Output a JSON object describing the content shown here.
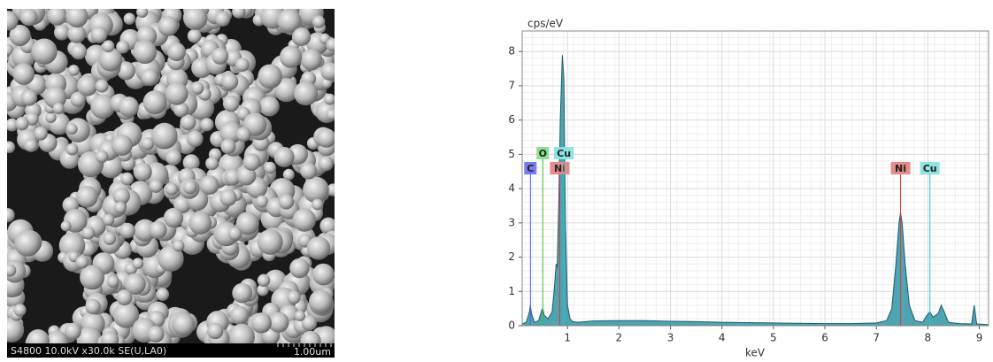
{
  "sem_image": {
    "caption": "S4800 10.0kV x30.0k SE(U,LA0)",
    "scale_bar": "1.00um"
  },
  "chart_data": {
    "type": "area",
    "y_label": "cps/eV",
    "x_label": "keV",
    "xlim": [
      0.12,
      9.18
    ],
    "ylim": [
      0,
      8.6
    ],
    "xticks": [
      1,
      2,
      3,
      4,
      5,
      6,
      7,
      8,
      9
    ],
    "yticks": [
      0,
      1,
      2,
      3,
      4,
      5,
      6,
      7,
      8
    ],
    "grid": true,
    "color": "#3b9aa9",
    "line_color": "#1f5f6e",
    "x": [
      0.12,
      0.2,
      0.26,
      0.28,
      0.3,
      0.36,
      0.44,
      0.5,
      0.52,
      0.55,
      0.62,
      0.7,
      0.74,
      0.78,
      0.8,
      0.83,
      0.86,
      0.9,
      0.93,
      0.96,
      1.0,
      1.05,
      1.1,
      1.2,
      1.5,
      2.0,
      2.5,
      3.0,
      3.5,
      4.0,
      4.5,
      5.0,
      5.5,
      6.0,
      6.5,
      7.0,
      7.2,
      7.3,
      7.38,
      7.44,
      7.47,
      7.5,
      7.56,
      7.64,
      7.75,
      7.9,
      7.98,
      8.04,
      8.1,
      8.2,
      8.26,
      8.32,
      8.4,
      8.6,
      8.85,
      8.9,
      8.95,
      9.1,
      9.18
    ],
    "values": [
      0.05,
      0.1,
      0.4,
      0.6,
      0.35,
      0.1,
      0.15,
      0.45,
      0.5,
      0.3,
      0.2,
      0.4,
      1.0,
      1.8,
      1.7,
      3.5,
      6.0,
      7.9,
      7.2,
      3.0,
      0.6,
      0.2,
      0.12,
      0.1,
      0.14,
      0.15,
      0.15,
      0.13,
      0.12,
      0.1,
      0.09,
      0.08,
      0.07,
      0.06,
      0.06,
      0.08,
      0.15,
      0.5,
      1.8,
      3.0,
      3.3,
      3.0,
      1.8,
      0.6,
      0.15,
      0.1,
      0.3,
      0.4,
      0.25,
      0.35,
      0.6,
      0.4,
      0.1,
      0.06,
      0.05,
      0.6,
      0.05,
      0.04,
      0.03
    ],
    "markers": [
      {
        "label": "C",
        "energy": 0.28,
        "color": "#7b7bf0",
        "line_color": "#5a5ae0"
      },
      {
        "label": "O",
        "energy": 0.52,
        "color": "#8ee08e",
        "line_color": "#3cc03c"
      },
      {
        "label": "Ni",
        "energy": 0.85,
        "color": "#e48a8a",
        "line_color": "#d04040"
      },
      {
        "label": "Cu",
        "energy": 0.93,
        "color": "#8ee4e4",
        "line_color": "#30c0d0"
      },
      {
        "label": "Ni",
        "energy": 7.47,
        "color": "#e48a8a",
        "line_color": "#d04040"
      },
      {
        "label": "Cu",
        "energy": 8.04,
        "color": "#8ee4e4",
        "line_color": "#30c0d0"
      }
    ]
  }
}
